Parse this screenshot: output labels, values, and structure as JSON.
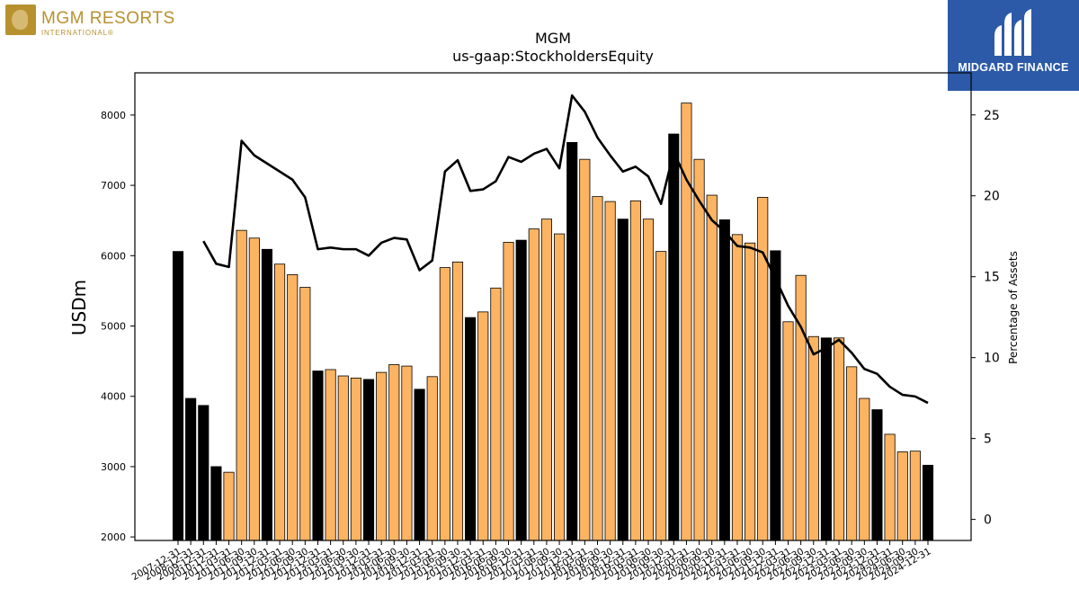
{
  "branding": {
    "left_logo_text": "MGM RESORTS",
    "left_logo_sub": "INTERNATIONAL®",
    "right_logo_text": "MIDGARD FINANCE",
    "right_logo_bg": "#2c5aa8",
    "left_logo_color": "#b8912f"
  },
  "chart_data": {
    "type": "bar",
    "title": "MGM",
    "subtitle": "us-gaap:StockholdersEquity",
    "ylabel": "USDm",
    "y2label": "Percentage of Assets",
    "ylim": [
      1950,
      8600
    ],
    "y2lim": [
      -1.3,
      27.6
    ],
    "yticks": [
      2000,
      3000,
      4000,
      5000,
      6000,
      7000,
      8000
    ],
    "y2ticks": [
      0,
      5,
      10,
      15,
      20,
      25
    ],
    "grid": false,
    "colors": {
      "annual": "#000000",
      "quarterly": "#fdb462",
      "line": "#000000",
      "bar_edge": "#000000"
    },
    "categories": [
      "2007-12-31",
      "2008-12-31",
      "2009-12-31",
      "2010-12-31",
      "2011-03-31",
      "2011-06-30",
      "2011-09-30",
      "2011-12-31",
      "2012-03-31",
      "2012-06-30",
      "2012-09-30",
      "2012-12-31",
      "2013-03-31",
      "2013-06-30",
      "2013-09-30",
      "2013-12-31",
      "2014-03-31",
      "2014-06-30",
      "2014-09-30",
      "2014-12-31",
      "2015-03-31",
      "2015-06-30",
      "2015-09-30",
      "2015-12-31",
      "2016-03-31",
      "2016-06-30",
      "2016-09-30",
      "2016-12-31",
      "2017-03-31",
      "2017-06-30",
      "2017-09-30",
      "2017-12-31",
      "2018-03-31",
      "2018-06-30",
      "2018-09-30",
      "2018-12-31",
      "2019-03-31",
      "2019-06-30",
      "2019-09-30",
      "2019-12-31",
      "2020-03-31",
      "2020-06-30",
      "2020-09-30",
      "2020-12-31",
      "2021-03-31",
      "2021-06-30",
      "2021-09-30",
      "2021-12-31",
      "2022-03-31",
      "2022-06-30",
      "2022-09-30",
      "2022-12-31",
      "2023-03-31",
      "2023-06-30",
      "2023-09-30",
      "2023-12-31",
      "2024-03-31",
      "2024-06-30",
      "2024-09-30",
      "2024-12-31"
    ],
    "values": [
      6060,
      3970,
      3870,
      3000,
      2920,
      6360,
      6250,
      6090,
      5880,
      5730,
      5550,
      4360,
      4380,
      4290,
      4260,
      4240,
      4340,
      4450,
      4430,
      4100,
      4280,
      5830,
      5910,
      5120,
      5200,
      5540,
      6190,
      6220,
      6380,
      6520,
      6310,
      7610,
      7370,
      6840,
      6770,
      6520,
      6780,
      6520,
      6060,
      7730,
      8170,
      7370,
      6860,
      6510,
      6300,
      6180,
      6830,
      6070,
      5060,
      5720,
      4850,
      4830,
      4830,
      4420,
      3970,
      3810,
      3460,
      3210,
      3220,
      3020
    ],
    "annual_flags": [
      1,
      1,
      1,
      1,
      0,
      0,
      0,
      1,
      0,
      0,
      0,
      1,
      0,
      0,
      0,
      1,
      0,
      0,
      0,
      1,
      0,
      0,
      0,
      1,
      0,
      0,
      0,
      1,
      0,
      0,
      0,
      1,
      0,
      0,
      0,
      1,
      0,
      0,
      0,
      1,
      0,
      0,
      0,
      1,
      0,
      0,
      0,
      1,
      0,
      0,
      0,
      1,
      0,
      0,
      0,
      1,
      0,
      0,
      0,
      1
    ],
    "line_values": [
      null,
      null,
      17.2,
      15.8,
      15.6,
      23.4,
      22.5,
      22.0,
      21.5,
      21.0,
      19.9,
      16.7,
      16.8,
      16.7,
      16.7,
      16.3,
      17.1,
      17.4,
      17.3,
      15.4,
      16.0,
      21.5,
      22.2,
      20.3,
      20.4,
      20.9,
      22.4,
      22.1,
      22.6,
      22.9,
      21.7,
      26.2,
      25.2,
      23.6,
      22.5,
      21.5,
      21.8,
      21.2,
      19.5,
      22.7,
      21.0,
      19.7,
      18.5,
      17.8,
      16.9,
      16.8,
      16.5,
      14.9,
      13.2,
      11.9,
      10.2,
      10.6,
      11.1,
      10.3,
      9.3,
      9.0,
      8.2,
      7.7,
      7.6,
      7.2
    ],
    "tick_labels": [
      "2007-12-31",
      "2008-12-31",
      "2009-12-31",
      "2010-12-31",
      "2011-03-31",
      "2011-06-30",
      "2011-09-30",
      "2011-12-31",
      "2012-03-31",
      "2012-06-30",
      "2012-09-30",
      "2012-12-31",
      "2013-03-31",
      "2013-06-30",
      "2013-09-30",
      "2013-12-31",
      "2014-03-31",
      "2014-06-30",
      "2014-09-30",
      "2014-12-31",
      "2015-03-31",
      "2015-06-30",
      "2015-09-30",
      "2015-12-31",
      "2016-03-31",
      "2016-06-30",
      "2016-09-30",
      "2016-12-31",
      "2017-03-31",
      "2017-06-30",
      "2017-09-30",
      "2017-12-31",
      "2018-03-31",
      "2018-06-30",
      "2018-09-30",
      "2018-12-31",
      "2019-03-31",
      "2019-06-30",
      "2019-09-30",
      "2019-12-31",
      "2020-03-31",
      "2020-06-30",
      "2020-09-30",
      "2020-12-31",
      "2021-03-31",
      "2021-06-30",
      "2021-09-30",
      "2021-12-31",
      "2022-03-31",
      "2022-06-30",
      "2022-09-30",
      "2022-12-31",
      "2023-03-31",
      "2023-06-30",
      "2023-09-30",
      "2023-12-31",
      "2024-03-31",
      "2024-06-30",
      "2024-09-30",
      "2024-12-31"
    ]
  }
}
